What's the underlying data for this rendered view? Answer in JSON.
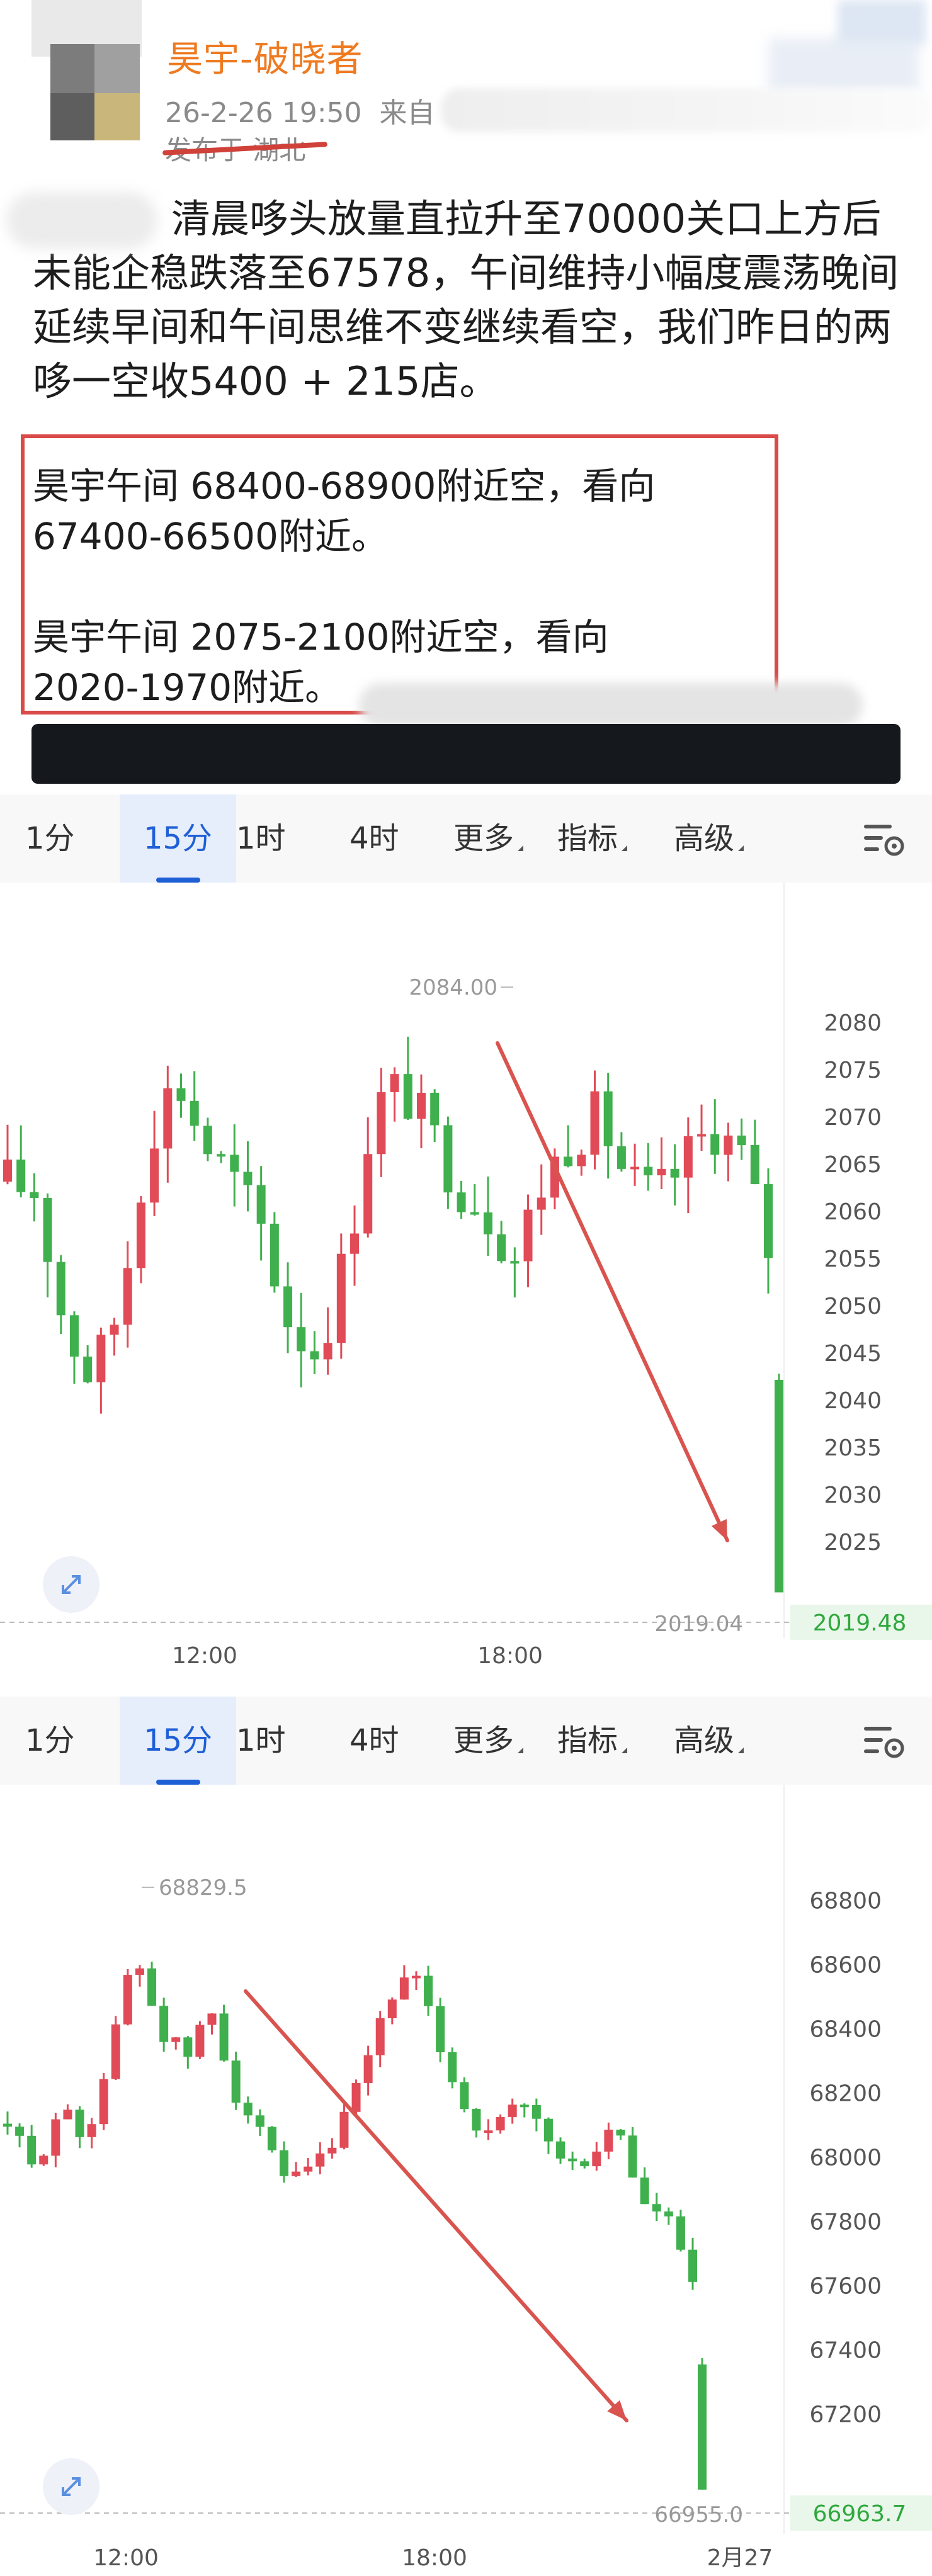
{
  "post": {
    "username": "昊宇-破晓者",
    "datetime": "26-2-26 19:50",
    "source_prefix": "来自",
    "location": "发布于 湖北",
    "body": "晨哆头放量直拉升至70000关口上方后未能企稳跌落至67578，午间维持小幅度震荡晚间延续早间和午间思维不变继续看空，我们昨日的两哆一空收5400 + 215店。",
    "body_visible_start": "清晨哆头放量直拉升至70000关口上方后未能企稳跌落至67578，午间维持小幅度震荡晚间延续早间和午间思维不变继续看空，我们昨日的两哆一空收5400 + 215店。",
    "ann1_line1": "昊宇午间  68400-68900附近空，看向",
    "ann1_line2": "67400-66500附近。",
    "ann2_line1": "昊宇午间  2075-2100附近空，看向",
    "ann2_line2": "2020-1970附近。"
  },
  "tabs": [
    {
      "label": "1分"
    },
    {
      "label": "15分",
      "active": true
    },
    {
      "label": "1时"
    },
    {
      "label": "4时"
    },
    {
      "label": "更多"
    },
    {
      "label": "指标"
    },
    {
      "label": "高级"
    }
  ],
  "settings_icon": "chart-settings-icon",
  "expand_icon": "expand-icon",
  "colors": {
    "up": "#e04b57",
    "down": "#3fb04d",
    "accent": "#1f5fd6",
    "arrow": "#d9534f"
  },
  "charts": [
    {
      "chart_data": {
        "type": "candlestick",
        "y_ticks": [
          2080,
          2075,
          2070,
          2065,
          2060,
          2055,
          2050,
          2045,
          2040,
          2035,
          2030,
          2025
        ],
        "x_labels": [
          "12:00",
          "18:00"
        ],
        "high_label": "2084.00",
        "low_label": "2019.04",
        "last_price": "2019.48",
        "ylim": [
          2018,
          2088
        ]
      }
    },
    {
      "chart_data": {
        "type": "candlestick",
        "y_ticks": [
          68800,
          68600,
          68400,
          68200,
          68000,
          67800,
          67600,
          67400,
          67200
        ],
        "x_labels": [
          "12:00",
          "18:00",
          "2月27"
        ],
        "high_label": "68829.5",
        "low_label": "66955.0",
        "last_price": "66963.7",
        "ylim": [
          66940,
          68960
        ]
      }
    }
  ]
}
